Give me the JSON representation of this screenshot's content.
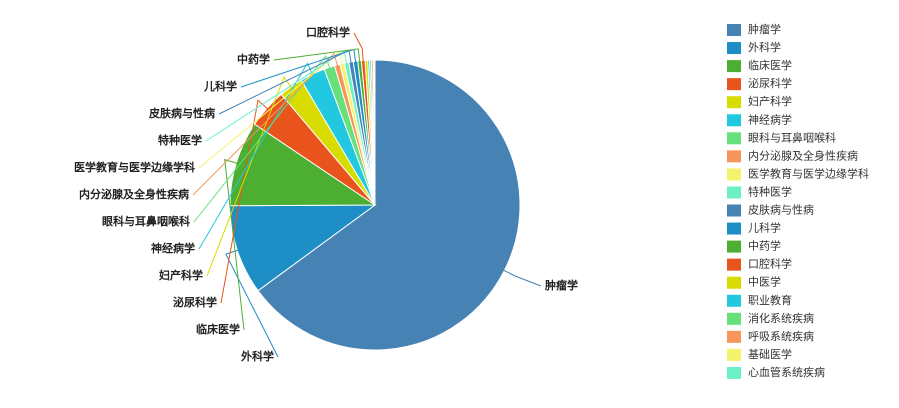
{
  "chart_data": {
    "type": "pie",
    "categories": [
      "肿瘤学",
      "外科学",
      "临床医学",
      "泌尿科学",
      "妇产科学",
      "神经病学",
      "眼科与耳鼻咽喉科",
      "内分泌腺及全身性疾病",
      "医学教育与医学边缘学科",
      "特种医学",
      "皮肤病与性病",
      "儿科学",
      "中药学",
      "口腔科学",
      "中医学",
      "职业教育",
      "消化系统疾病",
      "呼吸系统疾病",
      "基础医学",
      "心血管系统疾病"
    ],
    "values": [
      65,
      10,
      9.5,
      4.4,
      2.7,
      2.8,
      1.2,
      0.6,
      0.5,
      0.5,
      0.5,
      0.5,
      0.4,
      0.4,
      0.3,
      0.2,
      0.2,
      0.2,
      0.1,
      0.1
    ],
    "colors": [
      "#4682b4",
      "#1e8fc6",
      "#4caf32",
      "#e8541c",
      "#d9dc00",
      "#22c7e0",
      "#66e07a",
      "#f6965a",
      "#f4f46a",
      "#6cf0c8",
      "#4682b4",
      "#1e8fc6",
      "#4caf32",
      "#e8541c",
      "#d9dc00",
      "#22c7e0",
      "#66e07a",
      "#f6965a",
      "#f4f46a",
      "#6cf0c8"
    ],
    "legend": "right"
  }
}
